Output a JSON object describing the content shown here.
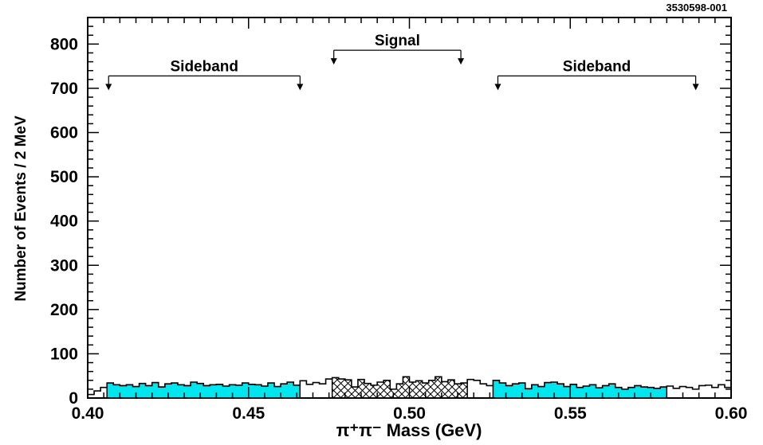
{
  "chart_data": {
    "type": "bar",
    "figure_id": "3530598-001",
    "title": "",
    "xlabel": "π⁺π⁻ Mass (GeV)",
    "ylabel": "Number of Events / 2 MeV",
    "xlim": [
      0.4,
      0.6
    ],
    "ylim": [
      0,
      860
    ],
    "bin_width": 0.002,
    "x_ticks": [
      "0.40",
      "0.45",
      "0.50",
      "0.55",
      "0.60"
    ],
    "y_ticks": [
      "0",
      "100",
      "200",
      "300",
      "400",
      "500",
      "600",
      "700",
      "800"
    ],
    "colors": {
      "sideband_fill": "#00e5ee",
      "signal_fill": "#000000",
      "outline": "#000000"
    },
    "histogram": {
      "bin_low_edges": [
        0.4,
        0.402,
        0.404,
        0.406,
        0.408,
        0.41,
        0.412,
        0.414,
        0.416,
        0.418,
        0.42,
        0.422,
        0.424,
        0.426,
        0.428,
        0.43,
        0.432,
        0.434,
        0.436,
        0.438,
        0.44,
        0.442,
        0.444,
        0.446,
        0.448,
        0.45,
        0.452,
        0.454,
        0.456,
        0.458,
        0.46,
        0.462,
        0.464,
        0.466,
        0.468,
        0.47,
        0.472,
        0.474,
        0.476,
        0.478,
        0.48,
        0.482,
        0.484,
        0.486,
        0.488,
        0.49,
        0.492,
        0.494,
        0.496,
        0.498,
        0.5,
        0.502,
        0.504,
        0.506,
        0.508,
        0.51,
        0.512,
        0.514,
        0.516,
        0.518,
        0.52,
        0.522,
        0.524,
        0.526,
        0.528,
        0.53,
        0.532,
        0.534,
        0.536,
        0.538,
        0.54,
        0.542,
        0.544,
        0.546,
        0.548,
        0.55,
        0.552,
        0.554,
        0.556,
        0.558,
        0.56,
        0.562,
        0.564,
        0.566,
        0.568,
        0.57,
        0.572,
        0.574,
        0.576,
        0.578,
        0.58,
        0.582,
        0.584,
        0.586,
        0.588,
        0.59,
        0.592,
        0.594,
        0.596,
        0.598
      ],
      "counts": [
        8,
        16,
        24,
        34,
        30,
        28,
        30,
        26,
        33,
        28,
        35,
        25,
        32,
        34,
        30,
        28,
        36,
        33,
        28,
        30,
        31,
        27,
        30,
        29,
        34,
        31,
        30,
        27,
        34,
        26,
        32,
        36,
        29,
        39,
        31,
        35,
        32,
        43,
        46,
        43,
        41,
        25,
        42,
        33,
        29,
        36,
        40,
        20,
        32,
        48,
        36,
        39,
        34,
        40,
        48,
        37,
        41,
        32,
        34,
        42,
        40,
        32,
        28,
        40,
        34,
        28,
        32,
        34,
        21,
        30,
        26,
        35,
        36,
        32,
        26,
        31,
        24,
        27,
        30,
        23,
        28,
        32,
        24,
        20,
        24,
        28,
        25,
        24,
        22,
        25,
        27,
        22,
        26,
        24,
        20,
        28,
        29,
        24,
        30,
        24
      ],
      "region": [
        "none",
        "none",
        "none",
        "sideband",
        "sideband",
        "sideband",
        "sideband",
        "sideband",
        "sideband",
        "sideband",
        "sideband",
        "sideband",
        "sideband",
        "sideband",
        "sideband",
        "sideband",
        "sideband",
        "sideband",
        "sideband",
        "sideband",
        "sideband",
        "sideband",
        "sideband",
        "sideband",
        "sideband",
        "sideband",
        "sideband",
        "sideband",
        "sideband",
        "sideband",
        "sideband",
        "sideband",
        "sideband",
        "none",
        "none",
        "none",
        "none",
        "none",
        "signal",
        "signal",
        "signal",
        "signal",
        "signal",
        "signal",
        "signal",
        "signal",
        "signal",
        "signal",
        "signal",
        "signal",
        "signal",
        "signal",
        "signal",
        "signal",
        "signal",
        "signal",
        "signal",
        "signal",
        "signal",
        "none",
        "none",
        "none",
        "none",
        "sideband",
        "sideband",
        "sideband",
        "sideband",
        "sideband",
        "sideband",
        "sideband",
        "sideband",
        "sideband",
        "sideband",
        "sideband",
        "sideband",
        "sideband",
        "sideband",
        "sideband",
        "sideband",
        "sideband",
        "sideband",
        "sideband",
        "sideband",
        "sideband",
        "sideband",
        "sideband",
        "sideband",
        "sideband",
        "sideband",
        "sideband",
        "none",
        "none",
        "none",
        "none",
        "none",
        "none",
        "none",
        "none",
        "none",
        "none"
      ]
    },
    "annotations": [
      {
        "label": "Sideband",
        "x_start": 0.4065,
        "x_end": 0.466,
        "y": 728
      },
      {
        "label": "Signal",
        "x_start": 0.4765,
        "x_end": 0.516,
        "y": 786
      },
      {
        "label": "Sideband",
        "x_start": 0.5275,
        "x_end": 0.589,
        "y": 728
      }
    ]
  }
}
